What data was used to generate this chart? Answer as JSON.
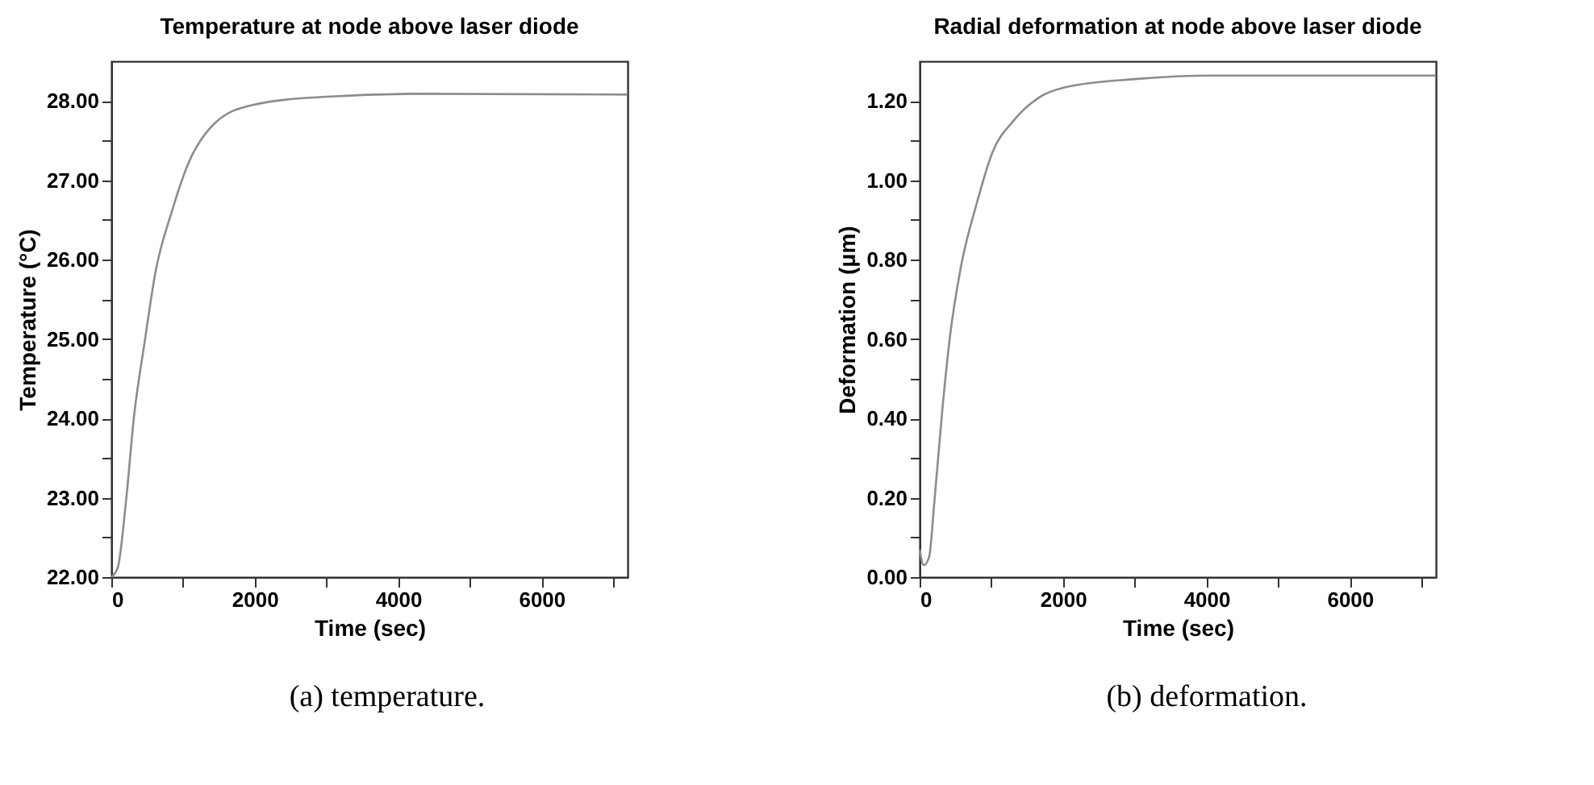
{
  "chart_data": [
    {
      "type": "line",
      "title": "Temperature at node above laser diode",
      "xlabel": "Time (sec)",
      "ylabel": "Temperature (°C)",
      "annotations": [
        "(a) temperature."
      ],
      "x": [
        0,
        90,
        203,
        316,
        466,
        617,
        842,
        1068,
        1444,
        1970,
        2947,
        4300,
        7200
      ],
      "series": [
        {
          "color": "#8c8c8c",
          "values": [
            22.0,
            22.12,
            22.94,
            24.02,
            24.97,
            25.85,
            26.6,
            27.2,
            27.72,
            27.95,
            28.05,
            28.09,
            28.08
          ]
        }
      ],
      "xlim": [
        0,
        7200
      ],
      "xticks": [
        0,
        {
          "value": 1000,
          "label": null
        },
        2000,
        {
          "value": 3000,
          "label": null
        },
        4000,
        {
          "value": 5000,
          "label": null
        },
        6000,
        {
          "value": 7000,
          "label": null
        }
      ],
      "ylim": [
        22,
        28.5
      ],
      "yticks": [
        {
          "value": 22,
          "label": "22.00"
        },
        {
          "value": 22.5,
          "label": null
        },
        {
          "value": 23,
          "label": "23.00"
        },
        {
          "value": 23.5,
          "label": null
        },
        {
          "value": 24,
          "label": "24.00"
        },
        {
          "value": 24.5,
          "label": null
        },
        {
          "value": 25,
          "label": "25.00"
        },
        {
          "value": 25.5,
          "label": null
        },
        {
          "value": 26,
          "label": "26.00"
        },
        {
          "value": 26.5,
          "label": null
        },
        {
          "value": 27,
          "label": "27.00"
        },
        {
          "value": 27.5,
          "label": null
        },
        {
          "value": 28,
          "label": "28.00"
        }
      ],
      "grid": false,
      "marker": "none",
      "line_style": "solid"
    },
    {
      "type": "line",
      "title": "Radial deformation at node above laser diode",
      "xlabel": "Time (sec)",
      "ylabel": "Deformation (μm)",
      "annotations": [
        "(b) deformation."
      ],
      "x": [
        0,
        59,
        132,
        206,
        316,
        426,
        574,
        794,
        1015,
        1309,
        1676,
        2044,
        3000,
        4103,
        7200
      ],
      "series": [
        {
          "color": "#8c8c8c",
          "values": [
            0.07,
            0.03,
            0.05,
            0.19,
            0.42,
            0.61,
            0.78,
            0.94,
            1.07,
            1.15,
            1.21,
            1.235,
            1.255,
            1.264,
            1.264
          ]
        }
      ],
      "xlim": [
        0,
        7200
      ],
      "xticks": [
        0,
        {
          "value": 1000,
          "label": null
        },
        2000,
        {
          "value": 3000,
          "label": null
        },
        4000,
        {
          "value": 5000,
          "label": null
        },
        6000,
        {
          "value": 7000,
          "label": null
        }
      ],
      "ylim": [
        0,
        1.3
      ],
      "yticks": [
        {
          "value": 0,
          "label": "0.00"
        },
        {
          "value": 0.1,
          "label": null
        },
        {
          "value": 0.2,
          "label": "0.20"
        },
        {
          "value": 0.3,
          "label": null
        },
        {
          "value": 0.4,
          "label": "0.40"
        },
        {
          "value": 0.5,
          "label": null
        },
        {
          "value": 0.6,
          "label": "0.60"
        },
        {
          "value": 0.7,
          "label": null
        },
        {
          "value": 0.8,
          "label": "0.80"
        },
        {
          "value": 0.9,
          "label": null
        },
        {
          "value": 1.0,
          "label": "1.00"
        },
        {
          "value": 1.1,
          "label": null
        },
        {
          "value": 1.2,
          "label": "1.20"
        }
      ],
      "grid": false,
      "marker": "none",
      "line_style": "solid"
    }
  ]
}
